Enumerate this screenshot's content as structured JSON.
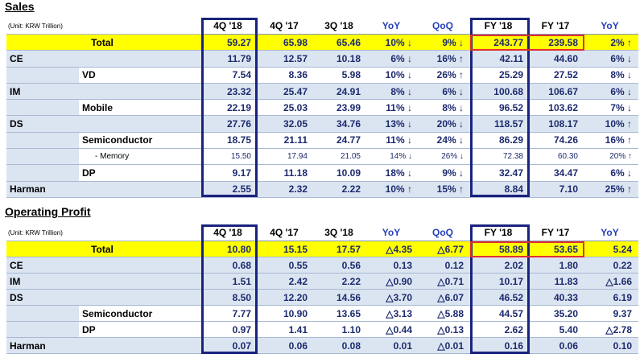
{
  "sections": [
    {
      "title": "Sales",
      "unit": "(Unit: KRW Trillion)",
      "columns": [
        "4Q '18",
        "4Q '17",
        "3Q '18",
        "YoY",
        "QoQ",
        "FY '18",
        "FY '17",
        "YoY"
      ],
      "rows": [
        {
          "label": "Total",
          "values": [
            "59.27",
            "65.98",
            "65.46",
            "10% ↓",
            "9% ↓",
            "243.77",
            "239.58",
            "2% ↑"
          ]
        },
        {
          "label": "CE",
          "values": [
            "11.79",
            "12.57",
            "10.18",
            "6% ↓",
            "16% ↑",
            "42.11",
            "44.60",
            "6% ↓"
          ],
          "children": [
            {
              "label": "VD",
              "values": [
                "7.54",
                "8.36",
                "5.98",
                "10% ↓",
                "26% ↑",
                "25.29",
                "27.52",
                "8% ↓"
              ]
            }
          ]
        },
        {
          "label": "IM",
          "values": [
            "23.32",
            "25.47",
            "24.91",
            "8% ↓",
            "6% ↓",
            "100.68",
            "106.67",
            "6% ↓"
          ],
          "children": [
            {
              "label": "Mobile",
              "values": [
                "22.19",
                "25.03",
                "23.99",
                "11% ↓",
                "8% ↓",
                "96.52",
                "103.62",
                "7% ↓"
              ]
            }
          ]
        },
        {
          "label": "DS",
          "values": [
            "27.76",
            "32.05",
            "34.76",
            "13% ↓",
            "20% ↓",
            "118.57",
            "108.17",
            "10% ↑"
          ],
          "children": [
            {
              "label": "Semiconductor",
              "values": [
                "18.75",
                "21.11",
                "24.77",
                "11% ↓",
                "24% ↓",
                "86.29",
                "74.26",
                "16% ↑"
              ],
              "children": [
                {
                  "label": "- Memory",
                  "values": [
                    "15.50",
                    "17.94",
                    "21.05",
                    "14% ↓",
                    "26% ↓",
                    "72.38",
                    "60.30",
                    "20% ↑"
                  ]
                }
              ]
            },
            {
              "label": "DP",
              "values": [
                "9.17",
                "11.18",
                "10.09",
                "18% ↓",
                "9% ↓",
                "32.47",
                "34.47",
                "6% ↓"
              ]
            }
          ]
        },
        {
          "label": "Harman",
          "values": [
            "2.55",
            "2.32",
            "2.22",
            "10% ↑",
            "15% ↑",
            "8.84",
            "7.10",
            "25% ↑"
          ]
        }
      ]
    },
    {
      "title": "Operating Profit",
      "unit": "(Unit: KRW Trillion)",
      "columns": [
        "4Q '18",
        "4Q '17",
        "3Q '18",
        "YoY",
        "QoQ",
        "FY '18",
        "FY '17",
        "YoY"
      ],
      "rows": [
        {
          "label": "Total",
          "values": [
            "10.80",
            "15.15",
            "17.57",
            "△4.35",
            "△6.77",
            "58.89",
            "53.65",
            "5.24"
          ]
        },
        {
          "label": "CE",
          "values": [
            "0.68",
            "0.55",
            "0.56",
            "0.13",
            "0.12",
            "2.02",
            "1.80",
            "0.22"
          ]
        },
        {
          "label": "IM",
          "values": [
            "1.51",
            "2.42",
            "2.22",
            "△0.90",
            "△0.71",
            "10.17",
            "11.83",
            "△1.66"
          ]
        },
        {
          "label": "DS",
          "values": [
            "8.50",
            "12.20",
            "14.56",
            "△3.70",
            "△6.07",
            "46.52",
            "40.33",
            "6.19"
          ],
          "children": [
            {
              "label": "Semiconductor",
              "values": [
                "7.77",
                "10.90",
                "13.65",
                "△3.13",
                "△5.88",
                "44.57",
                "35.20",
                "9.37"
              ]
            },
            {
              "label": "DP",
              "values": [
                "0.97",
                "1.41",
                "1.10",
                "△0.44",
                "△0.13",
                "2.62",
                "5.40",
                "△2.78"
              ]
            }
          ]
        },
        {
          "label": "Harman",
          "values": [
            "0.07",
            "0.06",
            "0.08",
            "0.01",
            "△0.01",
            "0.16",
            "0.06",
            "0.10"
          ]
        }
      ]
    }
  ]
}
